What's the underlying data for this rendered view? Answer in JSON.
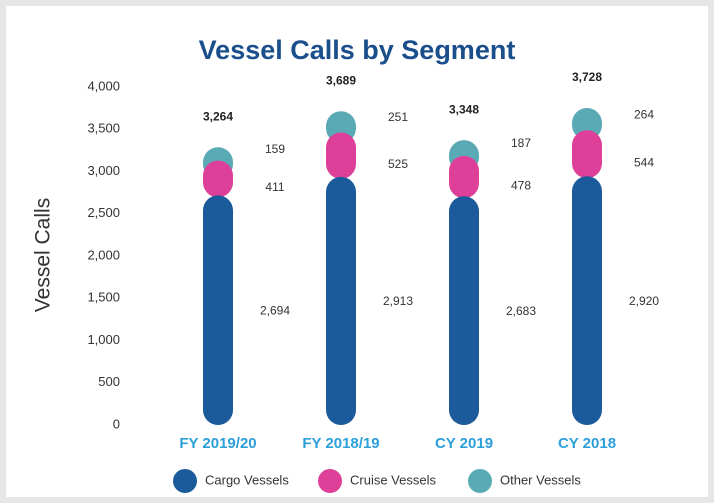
{
  "chart_data": {
    "type": "stacked_bar",
    "title": "Vessel Calls by Segment",
    "y_label": "Vessel Calls",
    "categories": [
      "FY 2019/20",
      "FY 2018/19",
      "CY 2019",
      "CY 2018"
    ],
    "series": [
      {
        "name": "Cargo Vessels",
        "color": "#1b5a9b",
        "values": [
          2694,
          2913,
          2683,
          2920
        ],
        "value_labels": [
          "2,694",
          "2,913",
          "2,683",
          "2,920"
        ]
      },
      {
        "name": "Cruise Vessels",
        "color": "#de3f98",
        "values": [
          411,
          525,
          478,
          544
        ]
      },
      {
        "name": "Other Vessels",
        "color": "#5aaab6",
        "values": [
          159,
          251,
          187,
          264
        ]
      }
    ],
    "totals": [
      3264,
      3689,
      3348,
      3728
    ],
    "total_labels": [
      "3,264",
      "3,689",
      "3,348",
      "3,728"
    ],
    "ylim": [
      0,
      4000
    ],
    "yticks": [
      0,
      500,
      {
        "value": 1000,
        "label": "1,000"
      },
      {
        "value": 1500,
        "label": "1,500"
      },
      {
        "value": 2000,
        "label": "2,000"
      },
      {
        "value": 2500,
        "label": "2,500"
      },
      {
        "value": 3000,
        "label": "3,000"
      },
      {
        "value": 3500,
        "label": "3,500"
      },
      {
        "value": 4000,
        "label": "4,000"
      }
    ],
    "grid": false
  }
}
